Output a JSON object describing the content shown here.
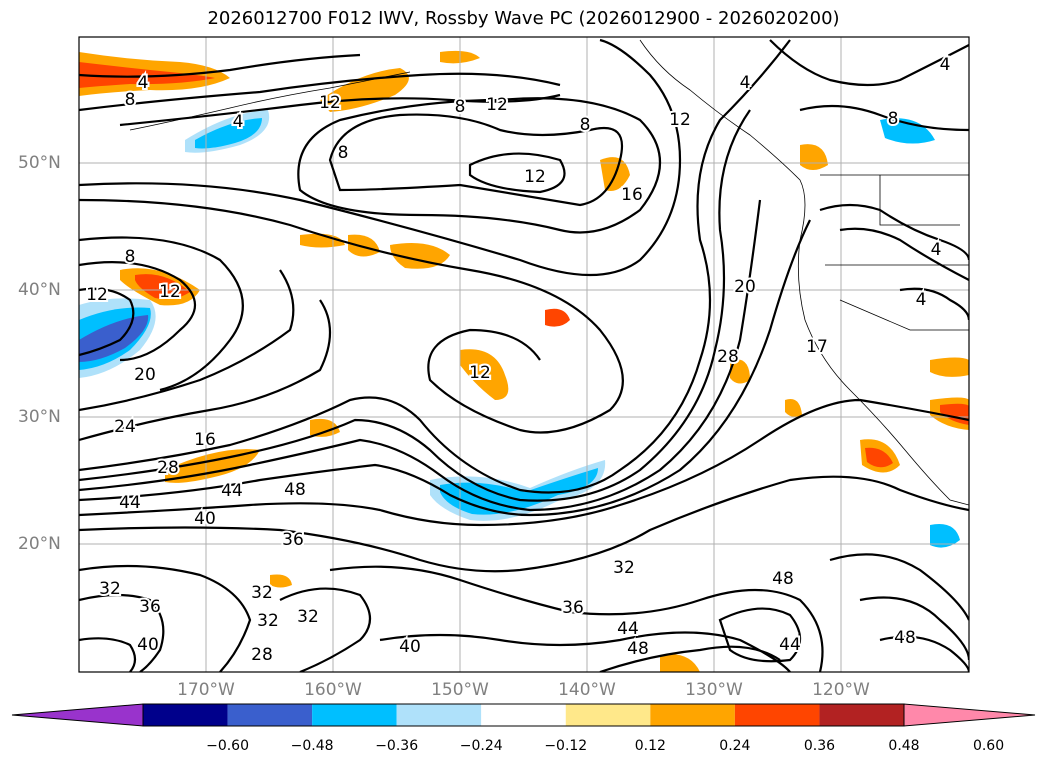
{
  "title": "2026012700 F012 IWV, Rossby Wave PC (2026012900 - 2026020200)",
  "lat_labels": [
    "50°N",
    "40°N",
    "30°N",
    "20°N"
  ],
  "lon_labels": [
    "170°W",
    "160°W",
    "150°W",
    "140°W",
    "130°W",
    "120°W"
  ],
  "colorbar": {
    "colors": [
      "#9933cc",
      "#00008b",
      "#3a5fcd",
      "#00bfff",
      "#afe1fa",
      "#ffffff",
      "#ffe88a",
      "#ffa500",
      "#ff4500",
      "#b22222",
      "#ff88aa"
    ],
    "tick_labels": [
      "−0.60",
      "−0.48",
      "−0.36",
      "−0.24",
      "−0.12",
      "0.12",
      "0.24",
      "0.36",
      "0.48",
      "0.60"
    ]
  },
  "contour_labels": [
    "4",
    "8",
    "12",
    "12",
    "8",
    "8",
    "12",
    "16",
    "20",
    "28",
    "12",
    "8",
    "4",
    "4",
    "8",
    "12",
    "12",
    "20",
    "24",
    "16",
    "28",
    "44",
    "48",
    "44",
    "40",
    "36",
    "32",
    "36",
    "32",
    "32",
    "32",
    "28",
    "40",
    "40",
    "36",
    "44",
    "48",
    "32",
    "48",
    "44",
    "48",
    "4",
    "8",
    "4",
    "4",
    "12",
    "17"
  ]
}
